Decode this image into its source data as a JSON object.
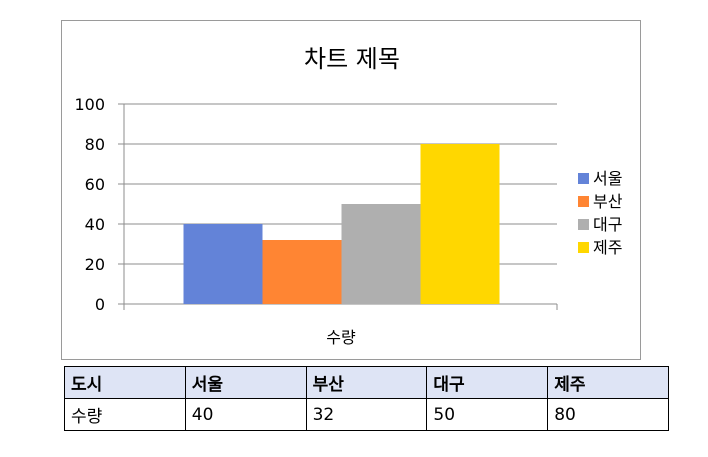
{
  "chart_data": {
    "type": "bar",
    "title": "차트 제목",
    "xlabel": "수량",
    "ylabel": "",
    "categories": [
      "수량"
    ],
    "series": [
      {
        "name": "서울",
        "values": [
          40
        ],
        "color": "#6383d8"
      },
      {
        "name": "부산",
        "values": [
          32
        ],
        "color": "#ff8533"
      },
      {
        "name": "대구",
        "values": [
          50
        ],
        "color": "#afafaf"
      },
      {
        "name": "제주",
        "values": [
          80
        ],
        "color": "#ffd700"
      }
    ],
    "ylim": [
      0,
      100
    ],
    "yticks": [
      "0",
      "20",
      "40",
      "60",
      "80",
      "100"
    ],
    "grid": true,
    "legend": "right"
  },
  "table": {
    "headers": [
      "도시",
      "서울",
      "부산",
      "대구",
      "제주"
    ],
    "rows": [
      [
        "수량",
        "40",
        "32",
        "50",
        "80"
      ]
    ]
  }
}
